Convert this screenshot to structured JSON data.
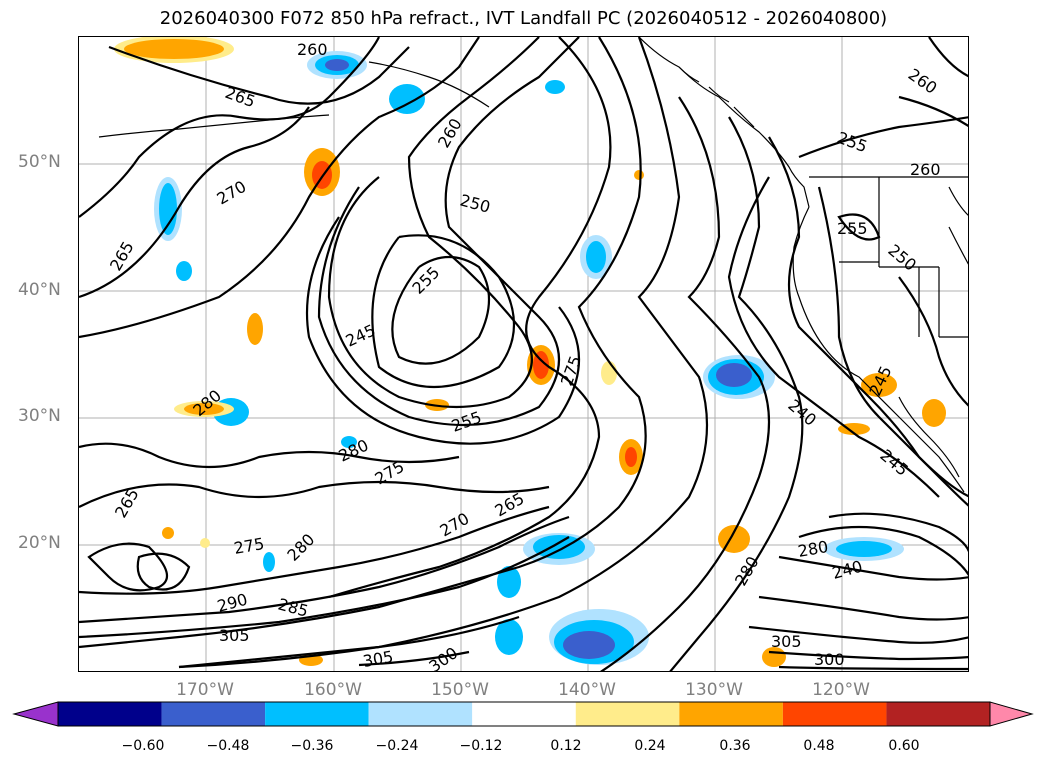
{
  "title": "2026040300 F072 850 hPa refract., IVT Landfall PC (2026040512 - 2026040800)",
  "lat_labels": [
    "50°N",
    "40°N",
    "30°N",
    "20°N"
  ],
  "lon_labels": [
    "170°W",
    "160°W",
    "150°W",
    "140°W",
    "130°W",
    "120°W"
  ],
  "contour_labels": [
    "260",
    "265",
    "270",
    "265",
    "260",
    "250",
    "255",
    "245",
    "275",
    "255",
    "280",
    "275",
    "270",
    "265",
    "280",
    "275",
    "280",
    "290",
    "285",
    "305",
    "305",
    "300",
    "280",
    "265",
    "260",
    "255",
    "250",
    "255",
    "245",
    "240",
    "245",
    "240",
    "280",
    "305",
    "300",
    "260"
  ],
  "colorbar": {
    "ticks": [
      "−0.60",
      "−0.48",
      "−0.36",
      "−0.24",
      "−0.12",
      "0.12",
      "0.24",
      "0.36",
      "0.48",
      "0.60"
    ],
    "colors": [
      "#9932cc",
      "#00008b",
      "#3a5fcd",
      "#00bfff",
      "#b0e2ff",
      "#ffffff",
      "#ffec8b",
      "#ffa500",
      "#ff4500",
      "#b22222",
      "#ff88aa"
    ]
  },
  "colors": {
    "contour": "#000000",
    "grid": "#b0b0b0",
    "coast": "#000000",
    "axis_label": "#808080"
  }
}
